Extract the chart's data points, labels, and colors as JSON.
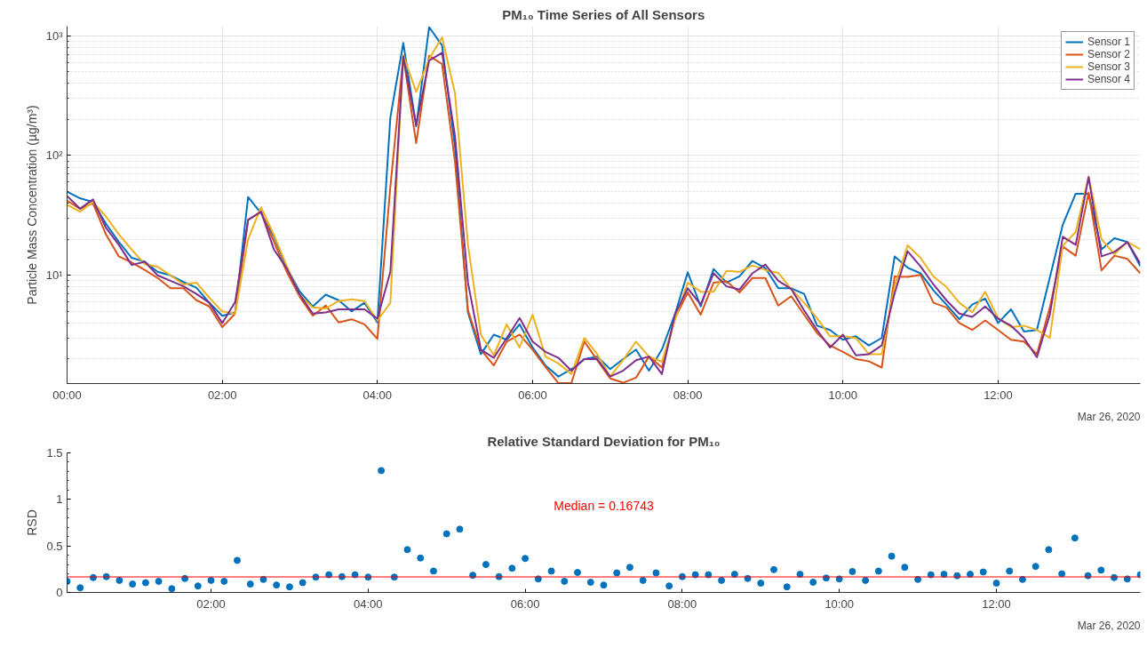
{
  "chart_data": [
    {
      "type": "line",
      "title": "PM₁₀ Time Series of All Sensors",
      "ylabel": "Particle Mass Concentration (µg/m³)",
      "x": [
        0,
        0.1667,
        0.3333,
        0.5,
        0.6667,
        0.8333,
        1,
        1.1667,
        1.3333,
        1.5,
        1.6667,
        1.8333,
        2,
        2.1667,
        2.3333,
        2.5,
        2.6667,
        2.8333,
        3,
        3.1667,
        3.3333,
        3.5,
        3.6667,
        3.8333,
        4,
        4.1667,
        4.3333,
        4.5,
        4.6667,
        4.8333,
        5,
        5.1667,
        5.3333,
        5.5,
        5.6667,
        5.8333,
        6,
        6.1667,
        6.3333,
        6.5,
        6.6667,
        6.8333,
        7,
        7.1667,
        7.3333,
        7.5,
        7.6667,
        7.8333,
        8,
        8.1667,
        8.3333,
        8.5,
        8.6667,
        8.8333,
        9,
        9.1667,
        9.3333,
        9.5,
        9.6667,
        9.8333,
        10,
        10.1667,
        10.3333,
        10.5,
        10.6667,
        10.8333,
        11,
        11.1667,
        11.3333,
        11.5,
        11.6667,
        11.8333,
        12,
        12.1667,
        12.3333,
        12.5,
        12.6667,
        12.8333,
        13,
        13.1667,
        13.3333,
        13.5,
        13.6667,
        13.8333
      ],
      "series": [
        {
          "name": "Sensor 1",
          "color": "#0072bd",
          "values": [
            50,
            44,
            41,
            27,
            19,
            14,
            13,
            10.7,
            10,
            8.8,
            7.9,
            5.9,
            4.6,
            4.9,
            45,
            33,
            21,
            11.5,
            7.3,
            5.5,
            6.9,
            6.2,
            5.0,
            5.9,
            4.05,
            208,
            870,
            175,
            1180,
            830,
            118,
            4.9,
            2.2,
            3.2,
            2.9,
            3.9,
            2.5,
            1.77,
            1.43,
            1.65,
            2.0,
            2.1,
            1.65,
            2.0,
            2.4,
            1.6,
            2.4,
            4.7,
            10.6,
            5.5,
            11.3,
            8.7,
            9.8,
            13.2,
            11.5,
            7.8,
            7.8,
            7.0,
            3.8,
            3.5,
            2.9,
            3.1,
            2.6,
            3.0,
            14.4,
            11.6,
            10.4,
            7.5,
            5.7,
            4.3,
            5.7,
            6.4,
            4.0,
            5.2,
            3.4,
            3.5,
            9.6,
            26.4,
            48,
            48,
            16.5,
            20.4,
            19,
            11.9
          ]
        },
        {
          "name": "Sensor 2",
          "color": "#d95319",
          "values": [
            42,
            36,
            40,
            22,
            14.4,
            12.8,
            11.1,
            9.5,
            7.8,
            7.8,
            6.2,
            5.5,
            3.7,
            4.8,
            29,
            34,
            19,
            10.6,
            6.6,
            4.6,
            5.6,
            4.05,
            4.3,
            3.9,
            2.95,
            55,
            670,
            127,
            680,
            580,
            89,
            5.1,
            2.4,
            1.77,
            2.8,
            3.2,
            2.4,
            1.72,
            1.26,
            1.26,
            2.8,
            1.96,
            1.38,
            1.27,
            1.4,
            2.1,
            1.7,
            4.35,
            7.2,
            4.7,
            8.7,
            8.9,
            7.2,
            9.5,
            9.5,
            5.6,
            6.7,
            4.7,
            3.3,
            2.6,
            2.3,
            2.0,
            1.92,
            1.7,
            9.8,
            9.7,
            10.1,
            5.9,
            5.4,
            4.0,
            3.5,
            4.2,
            3.5,
            2.9,
            2.8,
            2.2,
            5.4,
            17.4,
            14.6,
            49,
            11,
            14.6,
            13.7,
            10.4
          ]
        },
        {
          "name": "Sensor 3",
          "color": "#edb120",
          "values": [
            38.8,
            34,
            41,
            31,
            22,
            16.4,
            12.4,
            11.8,
            10,
            8.4,
            8.7,
            6.5,
            5.0,
            4.8,
            20,
            37,
            21.7,
            11.9,
            6.8,
            5.4,
            5.3,
            6.1,
            6.3,
            6.1,
            4.2,
            5.9,
            690,
            340,
            640,
            970,
            330,
            18,
            3.2,
            2.15,
            3.9,
            2.5,
            4.7,
            2.1,
            1.84,
            1.5,
            3.0,
            2.2,
            1.43,
            1.96,
            2.8,
            2.1,
            1.9,
            4.2,
            8.7,
            7.3,
            7.3,
            10.9,
            10.7,
            12.1,
            11.1,
            10.5,
            7.7,
            5.9,
            4.4,
            3.1,
            3.1,
            3.0,
            2.2,
            2.2,
            8.1,
            17.8,
            14,
            9.8,
            8.0,
            5.9,
            4.9,
            7.3,
            4.4,
            3.7,
            3.8,
            3.5,
            3.0,
            17.7,
            23,
            67,
            20,
            15,
            19,
            16.5
          ]
        },
        {
          "name": "Sensor 4",
          "color": "#7e2f8e",
          "values": [
            46,
            36,
            43,
            25,
            18,
            12.2,
            13,
            10,
            9.0,
            8.1,
            7.0,
            5.9,
            4.0,
            6.0,
            29,
            34,
            16.4,
            11.4,
            6.9,
            4.8,
            4.9,
            5.2,
            5.2,
            5.2,
            4.35,
            10.7,
            670,
            180,
            620,
            720,
            146,
            8.7,
            2.4,
            2.05,
            3.0,
            4.4,
            2.8,
            2.3,
            2.05,
            1.6,
            2.0,
            2.0,
            1.43,
            1.6,
            1.96,
            2.1,
            1.5,
            4.7,
            7.8,
            5.7,
            10.4,
            8.1,
            7.6,
            10.4,
            12.3,
            9.0,
            7.7,
            5.1,
            3.5,
            2.5,
            3.2,
            2.15,
            2.2,
            2.6,
            7.1,
            15.9,
            11.9,
            8.4,
            6.2,
            4.8,
            4.5,
            5.5,
            4.35,
            3.8,
            3.0,
            2.07,
            4.7,
            21,
            18,
            66,
            14.4,
            15.7,
            19,
            12.5
          ]
        }
      ],
      "xlim": [
        0,
        13.8333
      ],
      "xticks": [
        {
          "value": 0,
          "label": "00:00"
        },
        {
          "value": 2,
          "label": "02:00"
        },
        {
          "value": 4,
          "label": "04:00"
        },
        {
          "value": 6,
          "label": "06:00"
        },
        {
          "value": 8,
          "label": "08:00"
        },
        {
          "value": 10,
          "label": "10:00"
        },
        {
          "value": 12,
          "label": "12:00"
        }
      ],
      "ylim": [
        1.25,
        1200
      ],
      "yticks": [
        {
          "value": 2,
          "label": null
        },
        {
          "value": 3,
          "label": null
        },
        {
          "value": 4,
          "label": null
        },
        {
          "value": 5,
          "label": null
        },
        {
          "value": 6,
          "label": null
        },
        {
          "value": 7,
          "label": null
        },
        {
          "value": 8,
          "label": null
        },
        {
          "value": 9,
          "label": null
        },
        {
          "value": 10,
          "label": "10¹"
        },
        {
          "value": 20,
          "label": null
        },
        {
          "value": 30,
          "label": null
        },
        {
          "value": 40,
          "label": null
        },
        {
          "value": 50,
          "label": null
        },
        {
          "value": 60,
          "label": null
        },
        {
          "value": 70,
          "label": null
        },
        {
          "value": 80,
          "label": null
        },
        {
          "value": 90,
          "label": null
        },
        {
          "value": 100,
          "label": "10²"
        },
        {
          "value": 200,
          "label": null
        },
        {
          "value": 300,
          "label": null
        },
        {
          "value": 400,
          "label": null
        },
        {
          "value": 500,
          "label": null
        },
        {
          "value": 600,
          "label": null
        },
        {
          "value": 700,
          "label": null
        },
        {
          "value": 800,
          "label": null
        },
        {
          "value": 900,
          "label": null
        },
        {
          "value": 1000,
          "label": "10³"
        }
      ],
      "log": true,
      "grid": true,
      "legend": "top right",
      "line_style": "solid",
      "annotations": [
        "Mar 26, 2020"
      ]
    },
    {
      "type": "scatter",
      "title": "Relative Standard Deviation for PM₁₀",
      "ylabel": "RSD",
      "x": [
        0.1667,
        0.3333,
        0.5,
        0.6667,
        0.8333,
        1,
        1.1667,
        1.3333,
        1.5,
        1.6667,
        1.8333,
        2,
        2.1667,
        2.3333,
        2.5,
        2.6667,
        2.8333,
        3,
        3.1667,
        3.3333,
        3.5,
        3.6667,
        3.8333,
        4,
        4.1667,
        4.3333,
        4.5,
        4.6667,
        4.8333,
        5,
        5.1667,
        5.3333,
        5.5,
        5.6667,
        5.8333,
        6,
        6.1667,
        6.3333,
        6.5,
        6.6667,
        6.8333,
        7,
        7.1667,
        7.3333,
        7.5,
        7.6667,
        7.8333,
        8,
        8.1667,
        8.3333,
        8.5,
        8.6667,
        8.8333,
        9,
        9.1667,
        9.3333,
        9.5,
        9.6667,
        9.8333,
        10,
        10.1667,
        10.3333,
        10.5,
        10.6667,
        10.8333,
        11,
        11.1667,
        11.3333,
        11.5,
        11.6667,
        11.8333,
        12,
        12.1667,
        12.3333,
        12.5,
        12.6667,
        12.8333,
        13,
        13.1667,
        13.3333,
        13.5,
        13.6667,
        13.8333
      ],
      "series": [
        {
          "color": "#0072bd",
          "values": [
            0.12,
            0.05,
            0.16,
            0.17,
            0.13,
            0.09,
            0.105,
            0.12,
            0.04,
            0.15,
            0.07,
            0.13,
            0.12,
            0.345,
            0.09,
            0.14,
            0.08,
            0.06,
            0.105,
            0.165,
            0.19,
            0.17,
            0.19,
            0.165,
            1.31,
            0.165,
            0.46,
            0.37,
            0.23,
            0.63,
            0.68,
            0.185,
            0.3,
            0.17,
            0.26,
            0.365,
            0.145,
            0.23,
            0.12,
            0.215,
            0.11,
            0.08,
            0.21,
            0.27,
            0.13,
            0.21,
            0.07,
            0.17,
            0.19,
            0.19,
            0.13,
            0.195,
            0.15,
            0.1,
            0.245,
            0.06,
            0.195,
            0.11,
            0.155,
            0.145,
            0.225,
            0.13,
            0.23,
            0.39,
            0.27,
            0.14,
            0.19,
            0.195,
            0.18,
            0.195,
            0.22,
            0.1,
            0.23,
            0.14,
            0.28,
            0.46,
            0.2,
            0.585,
            0.18,
            0.24,
            0.16,
            0.145,
            0.19
          ]
        }
      ],
      "xlim": [
        0.1667,
        13.8333
      ],
      "xticks": [
        {
          "value": 2,
          "label": "02:00"
        },
        {
          "value": 4,
          "label": "04:00"
        },
        {
          "value": 6,
          "label": "06:00"
        },
        {
          "value": 8,
          "label": "08:00"
        },
        {
          "value": 10,
          "label": "10:00"
        },
        {
          "value": 12,
          "label": "12:00"
        }
      ],
      "ylim": [
        0,
        1.5
      ],
      "yticks": [
        0,
        {
          "value": 0.1,
          "label": null
        },
        {
          "value": 0.2,
          "label": null
        },
        {
          "value": 0.3,
          "label": null
        },
        {
          "value": 0.4,
          "label": null
        },
        0.5,
        {
          "value": 0.6,
          "label": null
        },
        {
          "value": 0.7,
          "label": null
        },
        {
          "value": 0.8,
          "label": null
        },
        {
          "value": 0.9,
          "label": null
        },
        1,
        {
          "value": 1.1,
          "label": null
        },
        {
          "value": 1.2,
          "label": null
        },
        {
          "value": 1.3,
          "label": null
        },
        {
          "value": 1.4,
          "label": null
        },
        1.5
      ],
      "marker": "circle",
      "ref_lines": [
        {
          "axis": "y",
          "value": 0.16743,
          "label": "Median = 0.16743",
          "color": "#ff0000"
        }
      ],
      "annotations": [
        "Mar 26, 2020"
      ]
    }
  ]
}
